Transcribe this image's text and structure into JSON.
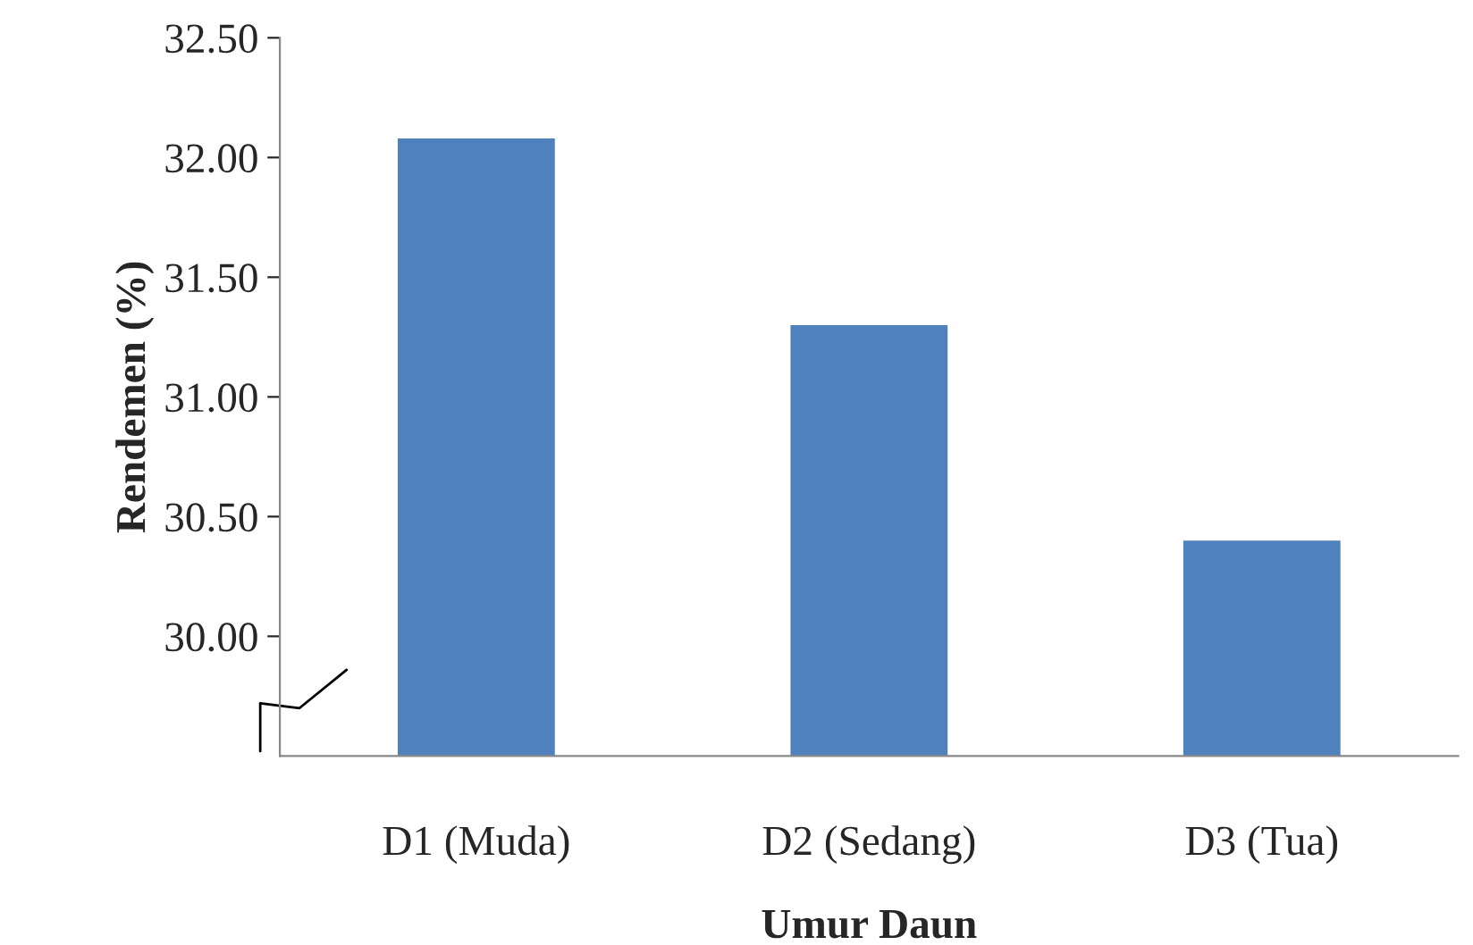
{
  "chart_data": {
    "type": "bar",
    "xlabel": "Umur Daun",
    "ylabel": "Rendemen (%)",
    "categories": [
      "D1 (Muda)",
      "D2 (Sedang)",
      "D3 (Tua)"
    ],
    "series": [
      {
        "color": "#4f81bd",
        "values": [
          32.08,
          31.3,
          30.4
        ]
      }
    ],
    "ylim": [
      29.5,
      32.5
    ],
    "yticks": [
      {
        "value": 30,
        "label": "30.00"
      },
      {
        "value": 30.5,
        "label": "30.50"
      },
      {
        "value": 31,
        "label": "31.00"
      },
      {
        "value": 31.5,
        "label": "31.50"
      },
      {
        "value": 32,
        "label": "32.00"
      },
      {
        "value": 32.5,
        "label": "32.50"
      }
    ],
    "grid": false,
    "legend": false
  }
}
